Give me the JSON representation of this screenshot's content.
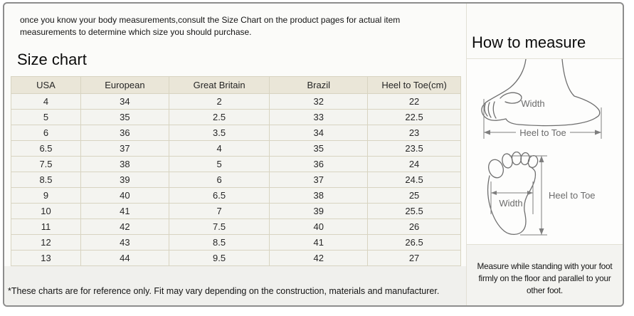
{
  "intro": "once you know your body measurements,consult the Size Chart on the product pages for actual item measurements to determine which size you should purchase.",
  "size_chart": {
    "title": "Size chart",
    "footnote": "*These charts are for reference only. Fit may vary depending on the construction, materials and manufacturer."
  },
  "chart_data": {
    "type": "table",
    "title": "Size chart",
    "columns": [
      "USA",
      "European",
      "Great Britain",
      "Brazil",
      "Heel to Toe(cm)"
    ],
    "rows": [
      [
        4,
        34,
        2,
        32,
        22
      ],
      [
        5,
        35,
        2.5,
        33,
        22.5
      ],
      [
        6,
        36,
        3.5,
        34,
        23
      ],
      [
        6.5,
        37,
        4,
        35,
        23.5
      ],
      [
        7.5,
        38,
        5,
        36,
        24
      ],
      [
        8.5,
        39,
        6,
        37,
        24.5
      ],
      [
        9,
        40,
        6.5,
        38,
        25
      ],
      [
        10,
        41,
        7,
        39,
        25.5
      ],
      [
        11,
        42,
        7.5,
        40,
        26
      ],
      [
        12,
        43,
        8.5,
        41,
        26.5
      ],
      [
        13,
        44,
        9.5,
        42,
        27
      ]
    ]
  },
  "how_to_measure": {
    "title": "How to measure",
    "labels": {
      "side_width": "Width",
      "side_heel_to_toe": "Heel to Toe",
      "sole_width": "Width",
      "sole_heel_to_toe": "Heel to Toe"
    },
    "note": "Measure while standing with your foot firmly on the floor and parallel to your other foot."
  },
  "colors": {
    "header_bg": "#eae6d8",
    "row_bg": "#f4f4f0",
    "table_border": "#d8d4c1",
    "outer_border": "#8d8d8d",
    "sketch_stroke": "#6e6e6e"
  }
}
